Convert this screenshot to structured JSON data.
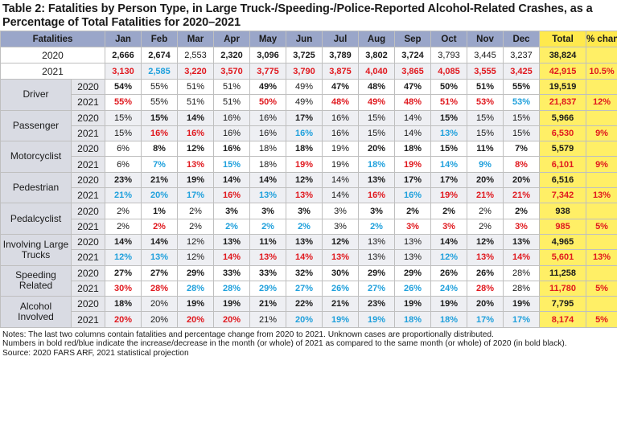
{
  "title": "Table 2: Fatalities by Person Type, in Large Truck-/Speeding-/Police-Reported Alcohol-Related Crashes, as a Percentage of Total Fatalities for 2020–2021",
  "header": {
    "label": "Fatalities",
    "months": [
      "Jan",
      "Feb",
      "Mar",
      "Apr",
      "May",
      "Jun",
      "Jul",
      "Aug",
      "Sep",
      "Oct",
      "Nov",
      "Dec"
    ],
    "total": "Total",
    "pct": "% change"
  },
  "totals": [
    {
      "year": "2020",
      "cells": [
        [
          "2,666",
          "b"
        ],
        [
          "2,674",
          "b"
        ],
        [
          "2,553",
          "n"
        ],
        [
          "2,320",
          "b"
        ],
        [
          "3,096",
          "b"
        ],
        [
          "3,725",
          "b"
        ],
        [
          "3,789",
          "b"
        ],
        [
          "3,802",
          "b"
        ],
        [
          "3,724",
          "b"
        ],
        [
          "3,793",
          "n"
        ],
        [
          "3,445",
          "n"
        ],
        [
          "3,237",
          "n"
        ]
      ],
      "total": "38,824",
      "total_style": "b",
      "pct": "",
      "pct_style": "n"
    },
    {
      "year": "2021",
      "cells": [
        [
          "3,130",
          "r"
        ],
        [
          "2,585",
          "u"
        ],
        [
          "3,220",
          "r"
        ],
        [
          "3,570",
          "r"
        ],
        [
          "3,775",
          "r"
        ],
        [
          "3,790",
          "r"
        ],
        [
          "3,875",
          "r"
        ],
        [
          "4,040",
          "r"
        ],
        [
          "3,865",
          "r"
        ],
        [
          "4,085",
          "r"
        ],
        [
          "3,555",
          "r"
        ],
        [
          "3,425",
          "r"
        ]
      ],
      "total": "42,915",
      "total_style": "r",
      "pct": "10.5%",
      "pct_style": "r"
    }
  ],
  "groups": [
    {
      "label": "Driver",
      "rows": [
        {
          "year": "2020",
          "cells": [
            [
              "54%",
              "b"
            ],
            [
              "55%",
              "n"
            ],
            [
              "51%",
              "n"
            ],
            [
              "51%",
              "n"
            ],
            [
              "49%",
              "b"
            ],
            [
              "49%",
              "n"
            ],
            [
              "47%",
              "b"
            ],
            [
              "48%",
              "b"
            ],
            [
              "47%",
              "b"
            ],
            [
              "50%",
              "b"
            ],
            [
              "51%",
              "b"
            ],
            [
              "55%",
              "b"
            ]
          ],
          "total": "19,519",
          "total_style": "b",
          "pct": "",
          "pct_style": "n"
        },
        {
          "year": "2021",
          "cells": [
            [
              "55%",
              "r"
            ],
            [
              "55%",
              "n"
            ],
            [
              "51%",
              "n"
            ],
            [
              "51%",
              "n"
            ],
            [
              "50%",
              "r"
            ],
            [
              "49%",
              "n"
            ],
            [
              "48%",
              "r"
            ],
            [
              "49%",
              "r"
            ],
            [
              "48%",
              "r"
            ],
            [
              "51%",
              "r"
            ],
            [
              "53%",
              "r"
            ],
            [
              "53%",
              "u"
            ]
          ],
          "total": "21,837",
          "total_style": "r",
          "pct": "12%",
          "pct_style": "r"
        }
      ]
    },
    {
      "label": "Passenger",
      "rows": [
        {
          "year": "2020",
          "cells": [
            [
              "15%",
              "n"
            ],
            [
              "15%",
              "b"
            ],
            [
              "14%",
              "b"
            ],
            [
              "16%",
              "n"
            ],
            [
              "16%",
              "n"
            ],
            [
              "17%",
              "b"
            ],
            [
              "16%",
              "n"
            ],
            [
              "15%",
              "n"
            ],
            [
              "14%",
              "n"
            ],
            [
              "15%",
              "b"
            ],
            [
              "15%",
              "n"
            ],
            [
              "15%",
              "n"
            ]
          ],
          "total": "5,966",
          "total_style": "b",
          "pct": "",
          "pct_style": "n"
        },
        {
          "year": "2021",
          "cells": [
            [
              "15%",
              "n"
            ],
            [
              "16%",
              "r"
            ],
            [
              "16%",
              "r"
            ],
            [
              "16%",
              "n"
            ],
            [
              "16%",
              "n"
            ],
            [
              "16%",
              "u"
            ],
            [
              "16%",
              "n"
            ],
            [
              "15%",
              "n"
            ],
            [
              "14%",
              "n"
            ],
            [
              "13%",
              "u"
            ],
            [
              "15%",
              "n"
            ],
            [
              "15%",
              "n"
            ]
          ],
          "total": "6,530",
          "total_style": "r",
          "pct": "9%",
          "pct_style": "r"
        }
      ]
    },
    {
      "label": "Motorcyclist",
      "rows": [
        {
          "year": "2020",
          "cells": [
            [
              "6%",
              "n"
            ],
            [
              "8%",
              "b"
            ],
            [
              "12%",
              "b"
            ],
            [
              "16%",
              "b"
            ],
            [
              "18%",
              "n"
            ],
            [
              "18%",
              "b"
            ],
            [
              "19%",
              "n"
            ],
            [
              "20%",
              "b"
            ],
            [
              "18%",
              "b"
            ],
            [
              "15%",
              "b"
            ],
            [
              "11%",
              "b"
            ],
            [
              "7%",
              "b"
            ]
          ],
          "total": "5,579",
          "total_style": "b",
          "pct": "",
          "pct_style": "n"
        },
        {
          "year": "2021",
          "cells": [
            [
              "6%",
              "n"
            ],
            [
              "7%",
              "u"
            ],
            [
              "13%",
              "r"
            ],
            [
              "15%",
              "u"
            ],
            [
              "18%",
              "n"
            ],
            [
              "19%",
              "r"
            ],
            [
              "19%",
              "n"
            ],
            [
              "18%",
              "u"
            ],
            [
              "19%",
              "r"
            ],
            [
              "14%",
              "u"
            ],
            [
              "9%",
              "u"
            ],
            [
              "8%",
              "r"
            ]
          ],
          "total": "6,101",
          "total_style": "r",
          "pct": "9%",
          "pct_style": "r"
        }
      ]
    },
    {
      "label": "Pedestrian",
      "rows": [
        {
          "year": "2020",
          "cells": [
            [
              "23%",
              "b"
            ],
            [
              "21%",
              "b"
            ],
            [
              "19%",
              "b"
            ],
            [
              "14%",
              "b"
            ],
            [
              "14%",
              "b"
            ],
            [
              "12%",
              "b"
            ],
            [
              "14%",
              "n"
            ],
            [
              "13%",
              "b"
            ],
            [
              "17%",
              "b"
            ],
            [
              "17%",
              "b"
            ],
            [
              "20%",
              "b"
            ],
            [
              "20%",
              "b"
            ]
          ],
          "total": "6,516",
          "total_style": "b",
          "pct": "",
          "pct_style": "n"
        },
        {
          "year": "2021",
          "cells": [
            [
              "21%",
              "u"
            ],
            [
              "20%",
              "u"
            ],
            [
              "17%",
              "u"
            ],
            [
              "16%",
              "r"
            ],
            [
              "13%",
              "u"
            ],
            [
              "13%",
              "r"
            ],
            [
              "14%",
              "n"
            ],
            [
              "16%",
              "r"
            ],
            [
              "16%",
              "u"
            ],
            [
              "19%",
              "r"
            ],
            [
              "21%",
              "r"
            ],
            [
              "21%",
              "r"
            ]
          ],
          "total": "7,342",
          "total_style": "r",
          "pct": "13%",
          "pct_style": "r"
        }
      ]
    },
    {
      "label": "Pedalcyclist",
      "rows": [
        {
          "year": "2020",
          "cells": [
            [
              "2%",
              "n"
            ],
            [
              "1%",
              "b"
            ],
            [
              "2%",
              "n"
            ],
            [
              "3%",
              "b"
            ],
            [
              "3%",
              "b"
            ],
            [
              "3%",
              "b"
            ],
            [
              "3%",
              "n"
            ],
            [
              "3%",
              "b"
            ],
            [
              "2%",
              "b"
            ],
            [
              "2%",
              "b"
            ],
            [
              "2%",
              "n"
            ],
            [
              "2%",
              "b"
            ]
          ],
          "total": "938",
          "total_style": "b",
          "pct": "",
          "pct_style": "n"
        },
        {
          "year": "2021",
          "cells": [
            [
              "2%",
              "n"
            ],
            [
              "2%",
              "r"
            ],
            [
              "2%",
              "n"
            ],
            [
              "2%",
              "u"
            ],
            [
              "2%",
              "u"
            ],
            [
              "2%",
              "u"
            ],
            [
              "3%",
              "n"
            ],
            [
              "2%",
              "u"
            ],
            [
              "3%",
              "r"
            ],
            [
              "3%",
              "r"
            ],
            [
              "2%",
              "n"
            ],
            [
              "3%",
              "r"
            ]
          ],
          "total": "985",
          "total_style": "r",
          "pct": "5%",
          "pct_style": "r"
        }
      ]
    },
    {
      "label": "Involving Large Trucks",
      "rows": [
        {
          "year": "2020",
          "cells": [
            [
              "14%",
              "b"
            ],
            [
              "14%",
              "b"
            ],
            [
              "12%",
              "n"
            ],
            [
              "13%",
              "b"
            ],
            [
              "11%",
              "b"
            ],
            [
              "13%",
              "b"
            ],
            [
              "12%",
              "b"
            ],
            [
              "13%",
              "n"
            ],
            [
              "13%",
              "n"
            ],
            [
              "14%",
              "b"
            ],
            [
              "12%",
              "b"
            ],
            [
              "13%",
              "b"
            ]
          ],
          "total": "4,965",
          "total_style": "b",
          "pct": "",
          "pct_style": "n"
        },
        {
          "year": "2021",
          "cells": [
            [
              "12%",
              "u"
            ],
            [
              "13%",
              "u"
            ],
            [
              "12%",
              "n"
            ],
            [
              "14%",
              "r"
            ],
            [
              "13%",
              "r"
            ],
            [
              "14%",
              "r"
            ],
            [
              "13%",
              "r"
            ],
            [
              "13%",
              "n"
            ],
            [
              "13%",
              "n"
            ],
            [
              "12%",
              "u"
            ],
            [
              "13%",
              "r"
            ],
            [
              "14%",
              "r"
            ]
          ],
          "total": "5,601",
          "total_style": "r",
          "pct": "13%",
          "pct_style": "r"
        }
      ]
    },
    {
      "label": "Speeding Related",
      "rows": [
        {
          "year": "2020",
          "cells": [
            [
              "27%",
              "b"
            ],
            [
              "27%",
              "b"
            ],
            [
              "29%",
              "b"
            ],
            [
              "33%",
              "b"
            ],
            [
              "33%",
              "b"
            ],
            [
              "32%",
              "b"
            ],
            [
              "30%",
              "b"
            ],
            [
              "29%",
              "b"
            ],
            [
              "29%",
              "b"
            ],
            [
              "26%",
              "b"
            ],
            [
              "26%",
              "b"
            ],
            [
              "28%",
              "n"
            ]
          ],
          "total": "11,258",
          "total_style": "b",
          "pct": "",
          "pct_style": "n"
        },
        {
          "year": "2021",
          "cells": [
            [
              "30%",
              "r"
            ],
            [
              "28%",
              "r"
            ],
            [
              "28%",
              "u"
            ],
            [
              "28%",
              "u"
            ],
            [
              "29%",
              "u"
            ],
            [
              "27%",
              "u"
            ],
            [
              "26%",
              "u"
            ],
            [
              "27%",
              "u"
            ],
            [
              "26%",
              "u"
            ],
            [
              "24%",
              "u"
            ],
            [
              "28%",
              "r"
            ],
            [
              "28%",
              "n"
            ]
          ],
          "total": "11,780",
          "total_style": "r",
          "pct": "5%",
          "pct_style": "r"
        }
      ]
    },
    {
      "label": "Alcohol Involved",
      "rows": [
        {
          "year": "2020",
          "cells": [
            [
              "18%",
              "b"
            ],
            [
              "20%",
              "n"
            ],
            [
              "19%",
              "b"
            ],
            [
              "19%",
              "b"
            ],
            [
              "21%",
              "b"
            ],
            [
              "22%",
              "b"
            ],
            [
              "21%",
              "b"
            ],
            [
              "23%",
              "b"
            ],
            [
              "19%",
              "b"
            ],
            [
              "19%",
              "b"
            ],
            [
              "20%",
              "b"
            ],
            [
              "19%",
              "b"
            ]
          ],
          "total": "7,795",
          "total_style": "b",
          "pct": "",
          "pct_style": "n"
        },
        {
          "year": "2021",
          "cells": [
            [
              "20%",
              "r"
            ],
            [
              "20%",
              "n"
            ],
            [
              "20%",
              "r"
            ],
            [
              "20%",
              "r"
            ],
            [
              "21%",
              "n"
            ],
            [
              "20%",
              "u"
            ],
            [
              "19%",
              "u"
            ],
            [
              "19%",
              "u"
            ],
            [
              "18%",
              "u"
            ],
            [
              "18%",
              "u"
            ],
            [
              "17%",
              "u"
            ],
            [
              "17%",
              "u"
            ]
          ],
          "total": "8,174",
          "total_style": "r",
          "pct": "5%",
          "pct_style": "r"
        }
      ]
    }
  ],
  "notes": [
    "Notes: The last two columns contain fatalities and percentage change from 2020 to 2021. Unknown cases are proportionally distributed.",
    "Numbers in bold red/blue indicate the increase/decrease in the month (or whole) of 2021 as compared to the same month (or whole) of 2020 (in bold black).",
    "Source: 2020 FARS ARF, 2021 statistical projection"
  ]
}
